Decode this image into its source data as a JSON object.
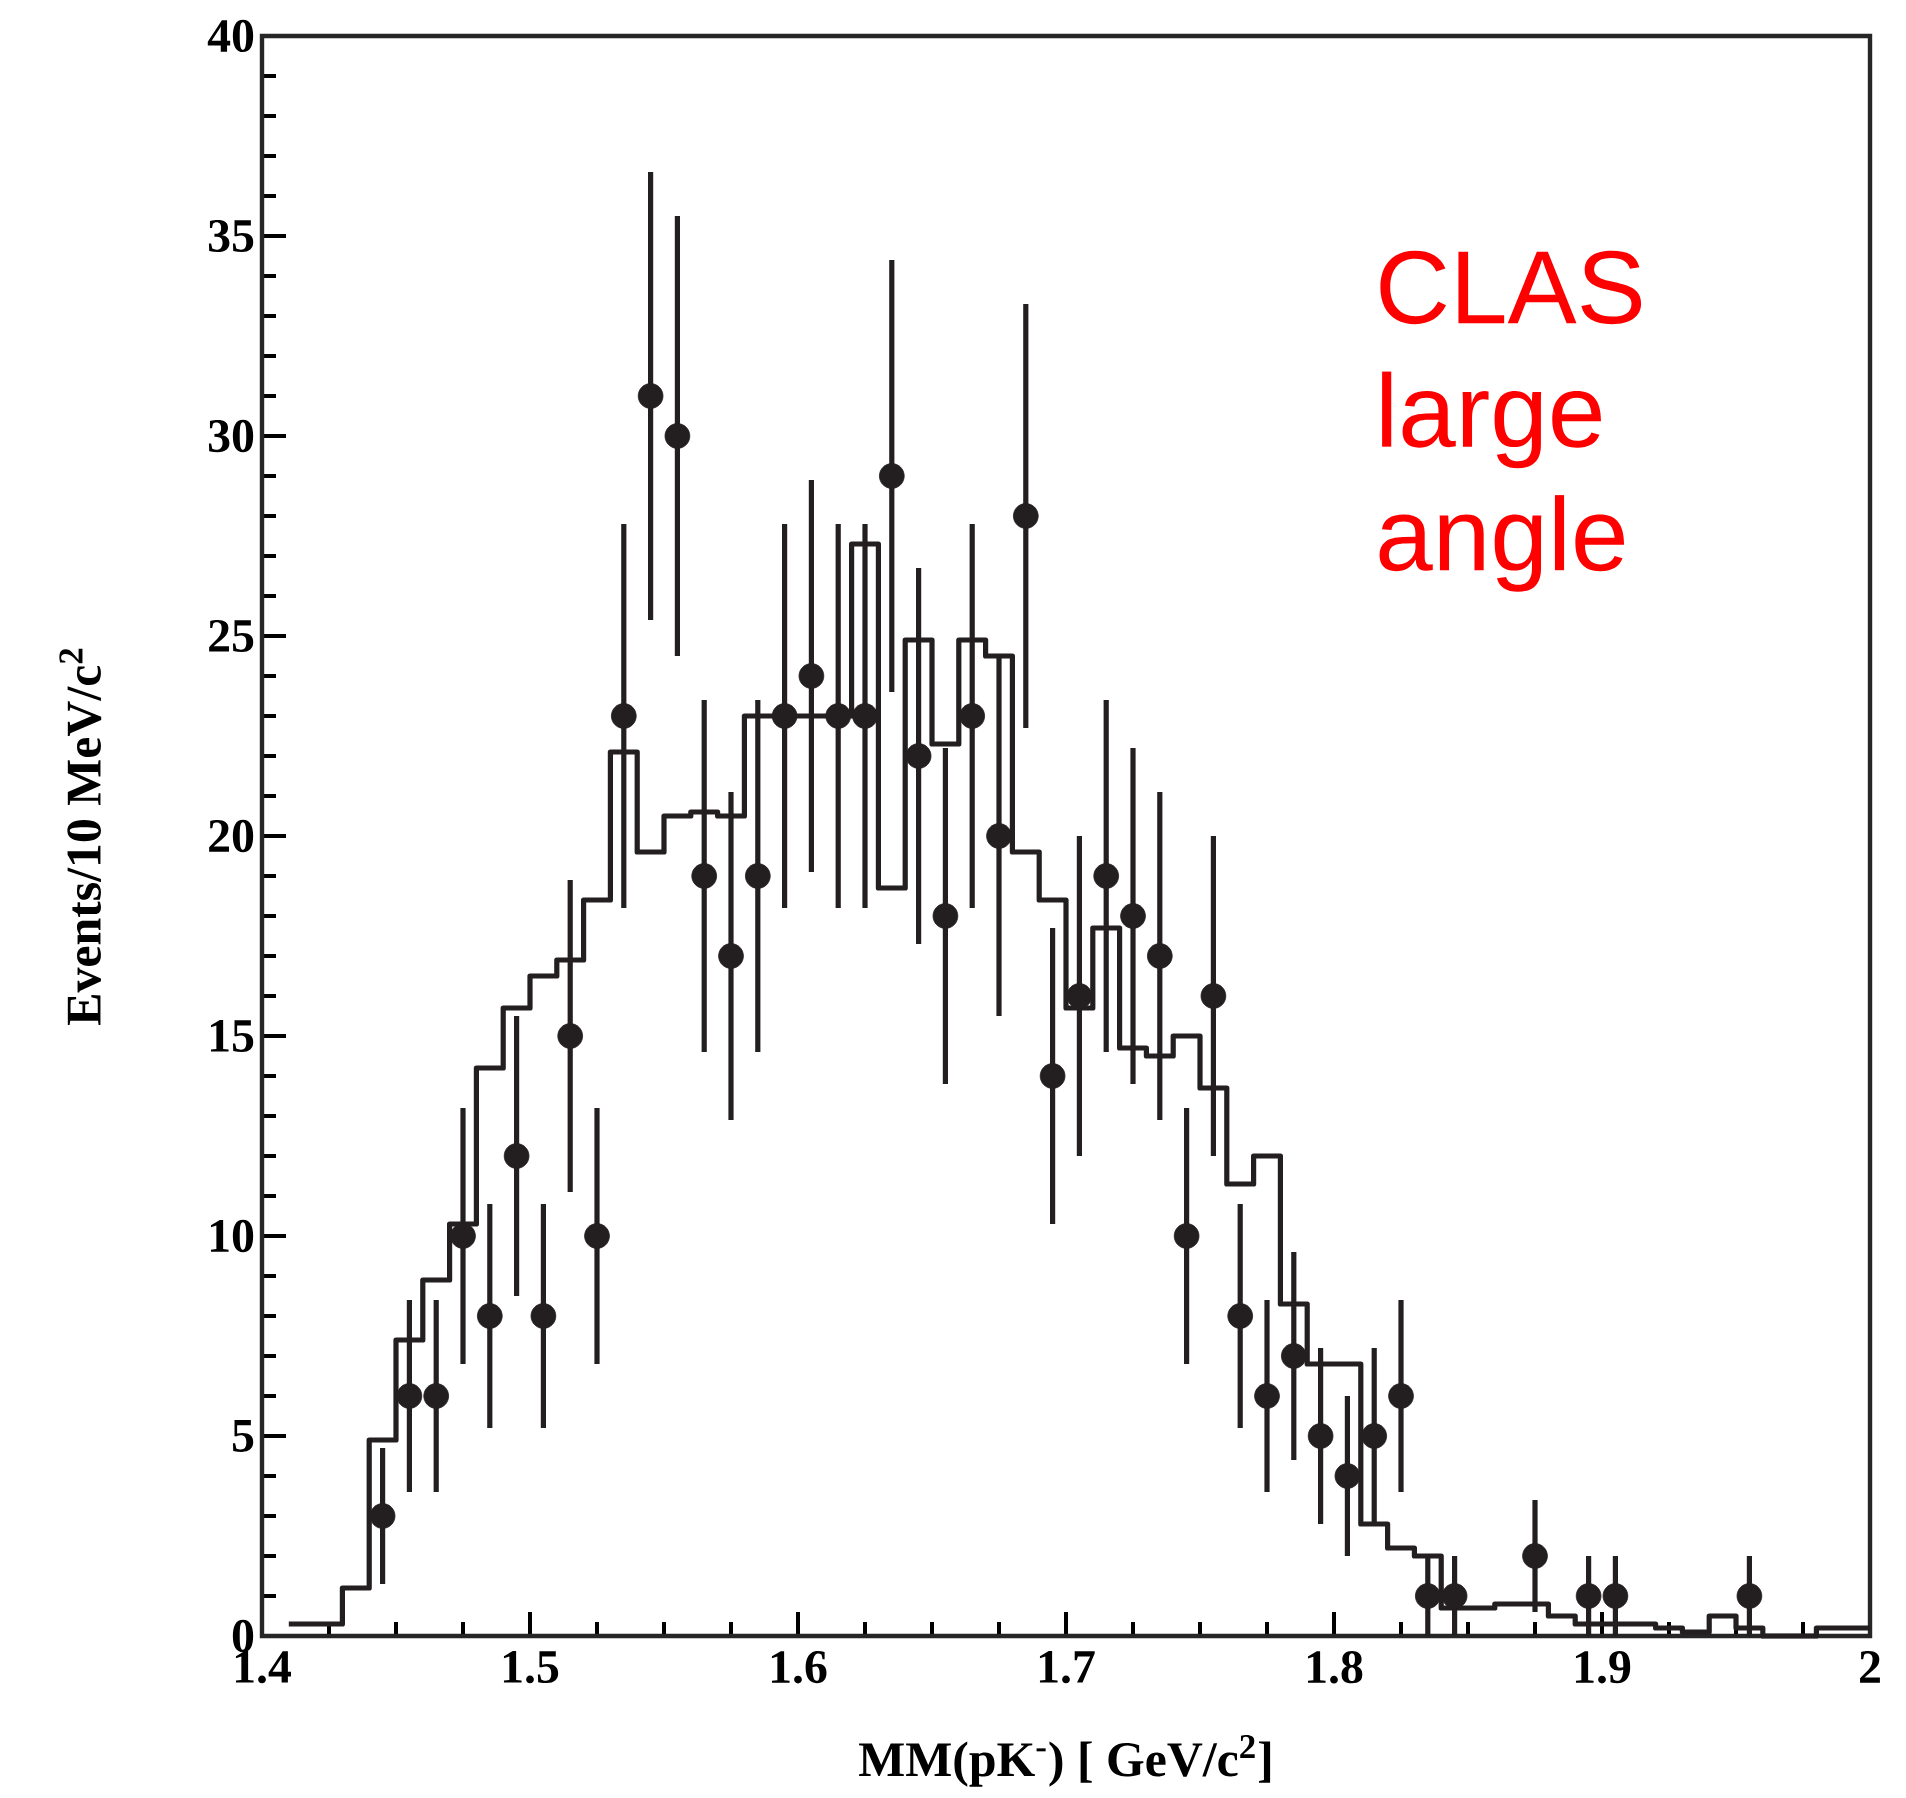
{
  "chart_data": {
    "type": "scatter",
    "xlabel": "MM(pK$^{-}$) [ GeV/c$^{2}$]",
    "ylabel": "Events/10 MeV/c$^{2}$",
    "annotations": [
      "CLAS large angle"
    ],
    "xlim": [
      1.4,
      2
    ],
    "ylim": [
      0,
      40
    ],
    "xticks": [
      1.4,
      1.5,
      1.6,
      1.7,
      1.8,
      1.9,
      2
    ],
    "yticks": [
      0,
      5,
      10,
      15,
      20,
      25,
      30,
      35,
      40
    ],
    "series": [
      {
        "type": "step",
        "color": "#231f20",
        "line_style": "solid",
        "x": [
          1.41,
          1.42,
          1.43,
          1.44,
          1.45,
          1.46,
          1.47,
          1.48,
          1.49,
          1.5,
          1.51,
          1.52,
          1.53,
          1.54,
          1.55,
          1.56,
          1.57,
          1.58,
          1.59,
          1.6,
          1.61,
          1.62,
          1.63,
          1.64,
          1.65,
          1.66,
          1.67,
          1.68,
          1.69,
          1.7,
          1.71,
          1.72,
          1.73,
          1.74,
          1.75,
          1.76,
          1.77,
          1.78,
          1.79,
          1.8,
          1.81,
          1.82,
          1.83,
          1.84,
          1.85,
          1.86,
          1.87,
          1.88,
          1.89,
          1.9,
          1.91,
          1.92,
          1.93,
          1.94,
          1.95,
          1.96,
          1.97,
          1.98,
          1.99,
          2
        ],
        "values": [
          0.3,
          0.3,
          1.2,
          4.9,
          7.4,
          8.9,
          10.3,
          14.2,
          15.7,
          16.5,
          16.9,
          18.4,
          22.1,
          19.6,
          20.5,
          20.6,
          20.5,
          23,
          23,
          23,
          23,
          27.3,
          18.7,
          24.9,
          22.3,
          24.9,
          24.5,
          19.6,
          18.4,
          15.7,
          17.7,
          14.7,
          14.5,
          15,
          13.7,
          11.3,
          12,
          8.3,
          6.8,
          6.8,
          2.8,
          2.2,
          2,
          0.7,
          0.7,
          0.8,
          0.8,
          0.5,
          0.3,
          0.3,
          0.3,
          0.2,
          0.1,
          0.5,
          0.2,
          0,
          0,
          0.2,
          0.2,
          0.2
        ]
      },
      {
        "type": "scatter",
        "color": "#231f20",
        "marker": "circle",
        "x": [
          1.445,
          1.455,
          1.465,
          1.475,
          1.485,
          1.495,
          1.505,
          1.515,
          1.525,
          1.535,
          1.545,
          1.555,
          1.565,
          1.575,
          1.585,
          1.595,
          1.605,
          1.615,
          1.625,
          1.635,
          1.645,
          1.655,
          1.665,
          1.675,
          1.685,
          1.695,
          1.705,
          1.715,
          1.725,
          1.735,
          1.745,
          1.755,
          1.765,
          1.775,
          1.785,
          1.795,
          1.805,
          1.815,
          1.825,
          1.835,
          1.845,
          1.875,
          1.895,
          1.905,
          1.955
        ],
        "values": [
          3,
          6,
          6,
          10,
          8,
          12,
          8,
          15,
          10,
          23,
          31,
          30,
          19,
          17,
          19,
          23,
          24,
          23,
          23,
          29,
          22,
          18,
          23,
          20,
          28,
          14,
          16,
          19,
          18,
          17,
          10,
          16,
          8,
          6,
          7,
          5,
          4,
          5,
          6,
          1,
          1,
          2,
          1,
          1,
          1
        ],
        "errors": [
          1.7,
          2.4,
          2.4,
          3.2,
          2.8,
          3.5,
          2.8,
          3.9,
          3.2,
          4.8,
          5.6,
          5.5,
          4.4,
          4.1,
          4.4,
          4.8,
          4.9,
          4.8,
          4.8,
          5.4,
          4.7,
          4.2,
          4.8,
          4.5,
          5.3,
          3.7,
          4,
          4.4,
          4.2,
          4.1,
          3.2,
          4,
          2.8,
          2.4,
          2.6,
          2.2,
          2,
          2.2,
          2.4,
          1,
          1,
          1.4,
          1,
          1,
          1
        ]
      }
    ]
  }
}
